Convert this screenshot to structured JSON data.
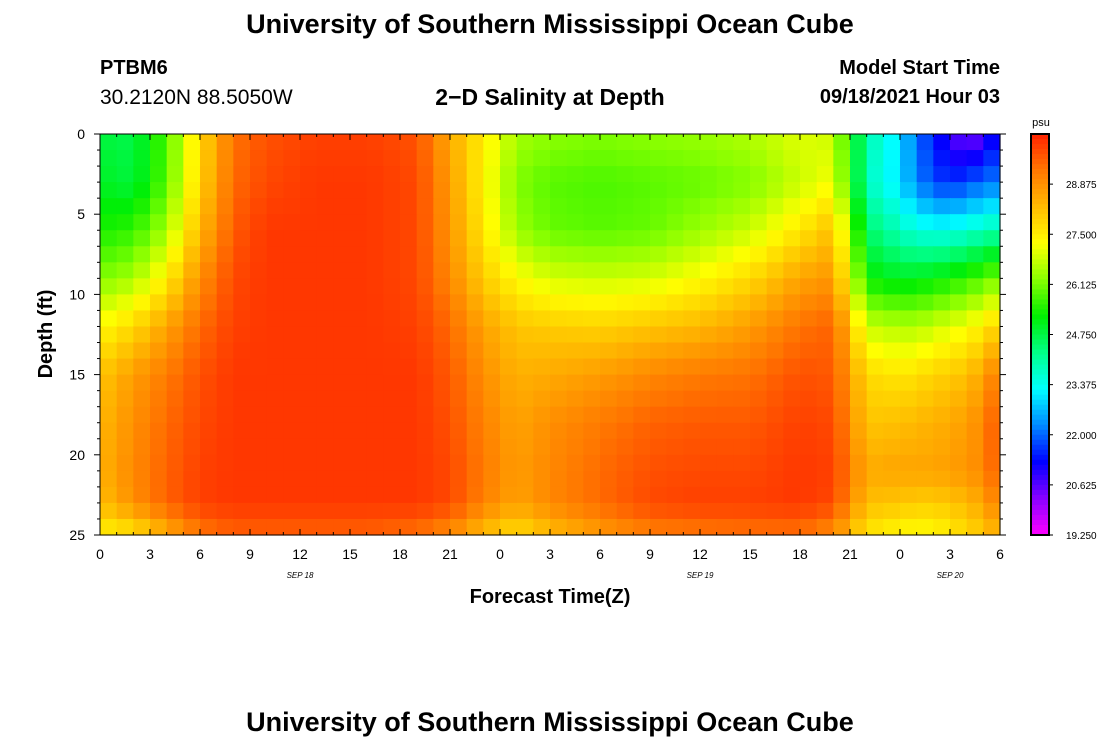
{
  "header": {
    "title": "University of Southern Mississippi Ocean Cube",
    "station": "PTBM6",
    "coordinates": "30.2120N  88.5050W",
    "subtitle": "2−D Salinity at Depth",
    "model_start_label": "Model Start Time",
    "model_start_value": "09/18/2021 Hour 03"
  },
  "footer": {
    "title": "University of Southern Mississippi Ocean Cube"
  },
  "chart_data": {
    "type": "heatmap",
    "title": "2-D Salinity at Depth",
    "xlabel": "Forecast Time(Z)",
    "ylabel": "Depth (ft)",
    "x_range_hours": [
      0,
      54
    ],
    "y_range_ft": [
      0,
      25
    ],
    "x_tick_labels": [
      "0",
      "3",
      "6",
      "9",
      "12",
      "15",
      "18",
      "21",
      "0",
      "3",
      "6",
      "9",
      "12",
      "15",
      "18",
      "21",
      "0",
      "3",
      "6"
    ],
    "y_ticks": [
      0,
      5,
      10,
      15,
      20,
      25
    ],
    "date_labels": [
      {
        "text": "SEP 18",
        "hour": 12
      },
      {
        "text": "SEP 19",
        "hour": 36
      },
      {
        "text": "SEP 20",
        "hour": 51
      }
    ],
    "colorbar": {
      "unit": "psu",
      "min": 19.25,
      "max": 30.25,
      "tick_labels": [
        "28.875",
        "27.500",
        "26.125",
        "24.750",
        "23.375",
        "22.000",
        "20.625",
        "19.250"
      ],
      "colors": [
        "#ff00ff",
        "#8800ff",
        "#0000ff",
        "#0088ff",
        "#00ffff",
        "#00ff88",
        "#00ee00",
        "#88ff00",
        "#ffff00",
        "#ffbb00",
        "#ff7700",
        "#ff2200"
      ]
    },
    "salinity_grid": {
      "hours": [
        0,
        2,
        4,
        6,
        8,
        10,
        13,
        16,
        19,
        21,
        23,
        25,
        27,
        30,
        33,
        36,
        39,
        42,
        44,
        46,
        48,
        49,
        50,
        51,
        52,
        53,
        54
      ],
      "depths": [
        0,
        3,
        6,
        9,
        12,
        15,
        18,
        21,
        23,
        25
      ],
      "values": [
        [
          24.8,
          24.7,
          25.8,
          27.8,
          29.3,
          29.7,
          29.9,
          29.9,
          29.7,
          28.5,
          27.5,
          26.5,
          26.3,
          26.2,
          26.3,
          26.4,
          26.6,
          27.0,
          26.8,
          24.0,
          23.0,
          22.0,
          21.5,
          20.8,
          20.3,
          20.6,
          21.5
        ],
        [
          25.0,
          24.8,
          25.9,
          27.9,
          29.4,
          29.8,
          30.0,
          30.0,
          29.8,
          28.7,
          27.4,
          26.2,
          25.9,
          25.8,
          25.9,
          26.0,
          26.2,
          26.8,
          27.2,
          23.8,
          23.0,
          22.2,
          21.8,
          21.5,
          21.8,
          22.0,
          22.2
        ],
        [
          25.4,
          25.6,
          26.5,
          28.3,
          29.6,
          30.0,
          30.0,
          30.0,
          29.8,
          28.8,
          27.6,
          26.4,
          26.0,
          25.9,
          26.0,
          26.4,
          26.8,
          27.6,
          28.2,
          24.5,
          23.8,
          23.5,
          23.4,
          23.4,
          23.6,
          23.8,
          24.0
        ],
        [
          26.2,
          26.5,
          27.5,
          28.9,
          29.8,
          30.0,
          30.0,
          30.0,
          29.8,
          29.0,
          28.0,
          27.3,
          26.9,
          26.8,
          26.9,
          27.3,
          27.8,
          28.6,
          28.8,
          25.3,
          25.0,
          25.1,
          25.2,
          25.4,
          25.6,
          25.9,
          26.2
        ],
        [
          27.3,
          27.8,
          28.6,
          29.4,
          29.9,
          30.0,
          30.0,
          30.0,
          29.9,
          29.4,
          28.6,
          28.1,
          28.0,
          27.9,
          28.1,
          28.3,
          28.7,
          29.3,
          29.5,
          26.8,
          26.6,
          26.6,
          26.8,
          27.0,
          27.2,
          27.5,
          28.0
        ],
        [
          28.1,
          28.7,
          29.2,
          29.7,
          30.0,
          30.0,
          30.0,
          30.0,
          30.0,
          29.6,
          28.9,
          28.4,
          28.5,
          28.7,
          29.0,
          29.2,
          29.3,
          29.7,
          29.6,
          27.8,
          27.6,
          27.7,
          27.9,
          28.0,
          28.2,
          28.6,
          29.3
        ],
        [
          28.3,
          28.9,
          29.4,
          29.8,
          30.0,
          30.0,
          30.0,
          30.0,
          30.0,
          29.7,
          29.1,
          28.6,
          28.9,
          29.2,
          29.5,
          29.6,
          29.6,
          29.9,
          29.8,
          28.1,
          28.2,
          28.3,
          28.4,
          28.5,
          28.7,
          29.0,
          29.8
        ],
        [
          28.4,
          29.0,
          29.5,
          29.9,
          30.0,
          30.0,
          30.0,
          30.0,
          30.0,
          29.8,
          29.2,
          28.7,
          29.0,
          29.4,
          29.7,
          29.8,
          29.8,
          30.0,
          29.9,
          28.5,
          28.6,
          28.6,
          28.6,
          28.7,
          28.8,
          29.0,
          29.7
        ],
        [
          28.2,
          28.9,
          29.5,
          29.9,
          30.0,
          30.0,
          30.0,
          30.0,
          30.0,
          29.8,
          29.1,
          28.6,
          29.0,
          29.4,
          29.8,
          29.9,
          29.9,
          30.0,
          29.8,
          28.2,
          28.1,
          28.0,
          28.0,
          28.1,
          28.3,
          28.6,
          29.2
        ],
        [
          27.4,
          27.6,
          28.4,
          29.2,
          29.5,
          29.5,
          29.5,
          29.5,
          29.3,
          28.9,
          28.2,
          27.7,
          28.2,
          28.7,
          29.1,
          29.2,
          29.3,
          29.3,
          28.9,
          27.6,
          27.3,
          27.2,
          27.3,
          27.5,
          27.8,
          28.0,
          28.5
        ]
      ]
    }
  }
}
